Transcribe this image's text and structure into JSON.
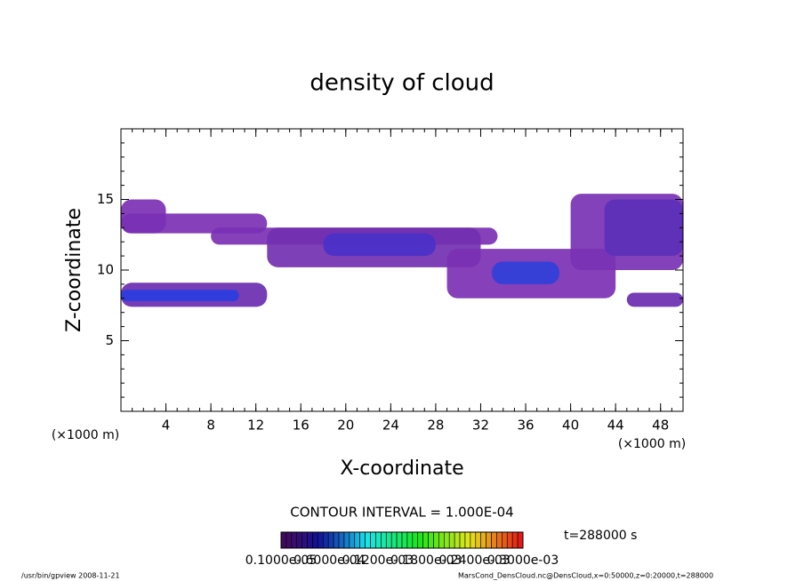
{
  "chart_data": {
    "type": "contour",
    "title": "density of cloud",
    "x_label": "X-coordinate",
    "y_label": "Z-coordinate",
    "x_unit": "(×1000 m)",
    "y_unit": "(×1000 m)",
    "xlim": [
      0,
      50
    ],
    "ylim": [
      0,
      20
    ],
    "xticks": [
      4,
      8,
      12,
      16,
      20,
      24,
      28,
      32,
      36,
      40,
      44,
      48
    ],
    "yticks": [
      5,
      10,
      15
    ],
    "contour_interval": "CONTOUR INTERVAL = 1.000E-04",
    "time_label": "t=288000 s",
    "colorbar_labels": [
      "0.1000e-05",
      "0.6000e-04",
      "0.1200e-03",
      "0.1800e-03",
      "0.2400e-03",
      "0.3000e-03"
    ],
    "footer_left": "/usr/bin/gpview   2008-11-21",
    "footer_right": "MarsCond_DensCloud.nc@DensCloud,x=0:50000,z=0:20000,t=288000",
    "cells": [
      {
        "x": [
          0,
          4
        ],
        "z": [
          12.6,
          15
        ],
        "color": "#7b30b4"
      },
      {
        "x": [
          0,
          13
        ],
        "z": [
          12.6,
          14
        ],
        "color": "#7b30b4"
      },
      {
        "x": [
          8,
          33.5
        ],
        "z": [
          11.8,
          13
        ],
        "color": "#7b30b4"
      },
      {
        "x": [
          13,
          32
        ],
        "z": [
          10.2,
          13
        ],
        "color": "#7230b0"
      },
      {
        "x": [
          18,
          28
        ],
        "z": [
          11,
          12.6
        ],
        "color": "#4a30c8"
      },
      {
        "x": [
          0,
          13
        ],
        "z": [
          7.4,
          9.1
        ],
        "color": "#6a2cb0"
      },
      {
        "x": [
          0,
          10.5
        ],
        "z": [
          7.8,
          8.6
        ],
        "color": "#2a3ce0"
      },
      {
        "x": [
          29,
          44
        ],
        "z": [
          8,
          11.5
        ],
        "color": "#7b30b4"
      },
      {
        "x": [
          33,
          39
        ],
        "z": [
          9,
          10.6
        ],
        "color": "#3040d8"
      },
      {
        "x": [
          40,
          50
        ],
        "z": [
          10,
          15.4
        ],
        "color": "#7a32b4"
      },
      {
        "x": [
          43,
          50
        ],
        "z": [
          11,
          15
        ],
        "color": "#5c30b8"
      },
      {
        "x": [
          45,
          50
        ],
        "z": [
          7.4,
          8.4
        ],
        "color": "#6a2cb0"
      }
    ]
  }
}
